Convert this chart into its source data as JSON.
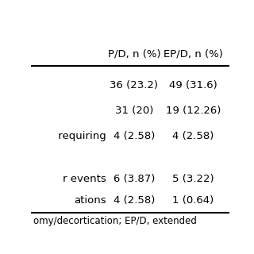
{
  "col_headers": [
    "P/D, n (%)",
    "EP/D, n (%)"
  ],
  "row_labels": [
    "",
    "",
    " requiring",
    "",
    "r events",
    "ations"
  ],
  "rows": [
    [
      "36 (23.2)",
      "49 (31.6)"
    ],
    [
      "31 (20)",
      "19 (12.26)"
    ],
    [
      "4 (2.58)",
      "4 (2.58)"
    ],
    [
      "",
      ""
    ],
    [
      "6 (3.87)",
      "5 (3.22)"
    ],
    [
      "4 (2.58)",
      "1 (0.64)"
    ]
  ],
  "footer": "omy/decortication; EP/D, extended",
  "bg_color": "#ffffff",
  "text_color": "#000000",
  "line_color": "#000000",
  "font_size": 9.5,
  "header_font_size": 9.5,
  "footer_font_size": 8.5
}
